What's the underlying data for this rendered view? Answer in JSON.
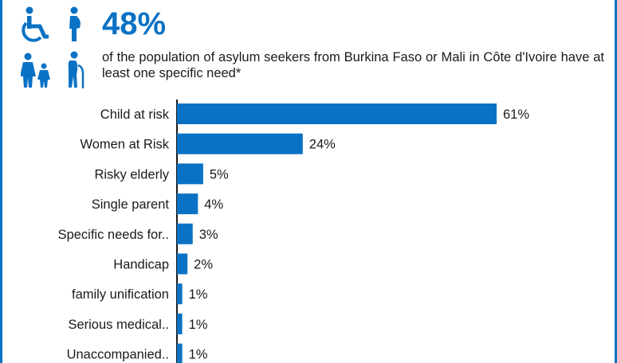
{
  "header": {
    "headline": "48%",
    "description": "of the population of asylum seekers from Burkina Faso or Mali in Côte d'Ivoire have at least one specific need*",
    "icons": [
      "wheelchair-icon",
      "pregnant-woman-icon",
      "parent-child-icon",
      "elderly-person-icon"
    ]
  },
  "colors": {
    "accent": "#0a72c4",
    "bar": "#0a72c4",
    "text": "#1a1a1a"
  },
  "chart_data": {
    "type": "bar",
    "orientation": "horizontal",
    "categories": [
      "Child at risk",
      "Women at Risk",
      "Risky elderly",
      "Single parent",
      "Specific needs for..",
      "Handicap",
      "family unification",
      "Serious medical..",
      "Unaccompanied.."
    ],
    "values": [
      61,
      24,
      5,
      4,
      3,
      2,
      1,
      1,
      1
    ],
    "value_labels": [
      "61%",
      "24%",
      "5%",
      "4%",
      "3%",
      "2%",
      "1%",
      "1%",
      "1%"
    ],
    "unit": "%",
    "xlim": [
      0,
      100
    ],
    "grid": false,
    "legend": "none"
  }
}
